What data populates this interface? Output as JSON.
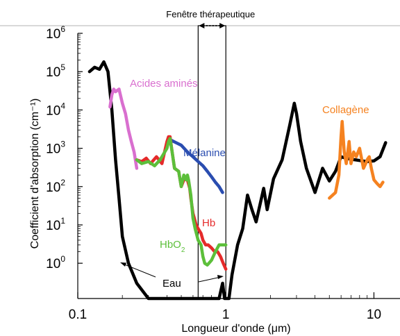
{
  "chart_data": {
    "type": "line",
    "xlabel": "Longueur d'onde (μm)",
    "ylabel": "Coefficient d'absorption (cm⁻¹)",
    "x_scale": "log",
    "y_scale": "log",
    "xlim": [
      0.1,
      15
    ],
    "ylim": [
      0.12,
      1000000
    ],
    "x_ticks": [
      {
        "value": 0.1,
        "label": "0.1"
      },
      {
        "value": 1,
        "label": "1"
      },
      {
        "value": 10,
        "label": "10"
      }
    ],
    "y_ticks": [
      {
        "value": 1,
        "mantissa": "10",
        "exponent": "0"
      },
      {
        "value": 10,
        "mantissa": "10",
        "exponent": "1"
      },
      {
        "value": 100,
        "mantissa": "10",
        "exponent": "2"
      },
      {
        "value": 1000,
        "mantissa": "10",
        "exponent": "3"
      },
      {
        "value": 10000,
        "mantissa": "10",
        "exponent": "4"
      },
      {
        "value": 100000,
        "mantissa": "10",
        "exponent": "5"
      },
      {
        "value": 1000000,
        "mantissa": "10",
        "exponent": "6"
      }
    ],
    "therapeutic_window": {
      "label": "Fenêtre thérapeutique",
      "x_range": [
        0.65,
        1.0
      ]
    },
    "series": [
      {
        "name": "Eau",
        "color": "#000000",
        "x": [
          0.12,
          0.13,
          0.14,
          0.15,
          0.16,
          0.17,
          0.18,
          0.19,
          0.2,
          0.22,
          0.25,
          0.3,
          0.5,
          0.7,
          0.9,
          0.95,
          0.98,
          1.0,
          1.05,
          1.1,
          1.2,
          1.3,
          1.4,
          1.5,
          1.6,
          1.8,
          1.9,
          2.1,
          2.4,
          2.7,
          2.9,
          3.0,
          3.2,
          3.5,
          4.0,
          4.5,
          5.0,
          5.5,
          6.0,
          6.5,
          7.0,
          8.0,
          9.0,
          10.0,
          11.0,
          12.0
        ],
        "y": [
          100000,
          130000,
          115000,
          180000,
          100000,
          10000,
          500,
          50,
          5,
          1.0,
          0.3,
          0.12,
          0.12,
          0.12,
          0.12,
          0.3,
          0.12,
          0.12,
          0.12,
          0.5,
          3,
          8,
          60,
          25,
          12,
          90,
          25,
          160,
          500,
          4000,
          15000,
          8000,
          1500,
          300,
          70,
          300,
          140,
          250,
          600,
          550,
          520,
          480,
          450,
          470,
          600,
          1400
        ]
      },
      {
        "name": "Acides aminés",
        "color": "#d96fcf",
        "x": [
          0.165,
          0.17,
          0.175,
          0.18,
          0.19,
          0.2,
          0.21,
          0.22,
          0.23,
          0.24,
          0.25
        ],
        "y": [
          12000,
          25000,
          35000,
          30000,
          35000,
          15000,
          8000,
          3000,
          1500,
          800,
          300
        ]
      },
      {
        "name": "Mélanine",
        "color": "#2a4db0",
        "x": [
          0.43,
          0.5,
          0.55,
          0.6,
          0.65,
          0.7,
          0.75,
          0.8,
          0.85,
          0.9,
          0.95
        ],
        "y": [
          1600,
          1200,
          800,
          600,
          450,
          350,
          250,
          180,
          130,
          100,
          70
        ]
      },
      {
        "name": "Hb",
        "color": "#e52a2a",
        "x": [
          0.25,
          0.27,
          0.29,
          0.31,
          0.34,
          0.37,
          0.4,
          0.41,
          0.42,
          0.43,
          0.45,
          0.48,
          0.5,
          0.52,
          0.54,
          0.55,
          0.57,
          0.58,
          0.6,
          0.63,
          0.65,
          0.68,
          0.7,
          0.73,
          0.76,
          0.8,
          0.84,
          0.88,
          0.92,
          0.96,
          1.0
        ],
        "y": [
          500,
          450,
          550,
          400,
          600,
          400,
          1500,
          2000,
          2000,
          1000,
          300,
          250,
          100,
          150,
          180,
          150,
          90,
          50,
          20,
          10,
          8,
          6,
          4,
          3,
          3,
          2.5,
          2,
          2,
          1.5,
          1.0,
          0.7
        ]
      },
      {
        "name": "HbO₂",
        "color": "#5cbf3a",
        "x": [
          0.25,
          0.27,
          0.3,
          0.33,
          0.36,
          0.4,
          0.41,
          0.42,
          0.43,
          0.45,
          0.48,
          0.5,
          0.52,
          0.54,
          0.55,
          0.56,
          0.58,
          0.6,
          0.62,
          0.65,
          0.68,
          0.7,
          0.72,
          0.75,
          0.8,
          0.85,
          0.9,
          0.95,
          1.0
        ],
        "y": [
          500,
          400,
          450,
          350,
          500,
          1000,
          1500,
          1800,
          1000,
          300,
          250,
          100,
          200,
          150,
          200,
          150,
          60,
          15,
          8,
          4,
          3,
          1.5,
          1.0,
          0.9,
          1.2,
          2,
          3,
          3,
          3
        ]
      },
      {
        "name": "Collagène",
        "color": "#f58220",
        "x": [
          5.0,
          5.5,
          5.8,
          6.0,
          6.1,
          6.2,
          6.3,
          6.5,
          6.8,
          7.0,
          7.3,
          7.6,
          8.0,
          8.5,
          8.8,
          9.0,
          9.3,
          9.6,
          10.0,
          10.5,
          11.0,
          11.5
        ],
        "y": [
          50,
          70,
          200,
          2000,
          5000,
          2000,
          800,
          400,
          1500,
          400,
          800,
          600,
          1000,
          300,
          400,
          500,
          600,
          300,
          150,
          120,
          100,
          130
        ]
      }
    ],
    "annotations": [
      {
        "text": "Acides aminés",
        "color": "#d96fcf"
      },
      {
        "text": "Mélanine",
        "color": "#2a4db0"
      },
      {
        "text": "Hb",
        "color": "#e52a2a"
      },
      {
        "text": "HbO",
        "sub": "2",
        "color": "#5cbf3a"
      },
      {
        "text": "Eau",
        "color": "#000000"
      },
      {
        "text": "Collagène",
        "color": "#f58220"
      }
    ]
  }
}
